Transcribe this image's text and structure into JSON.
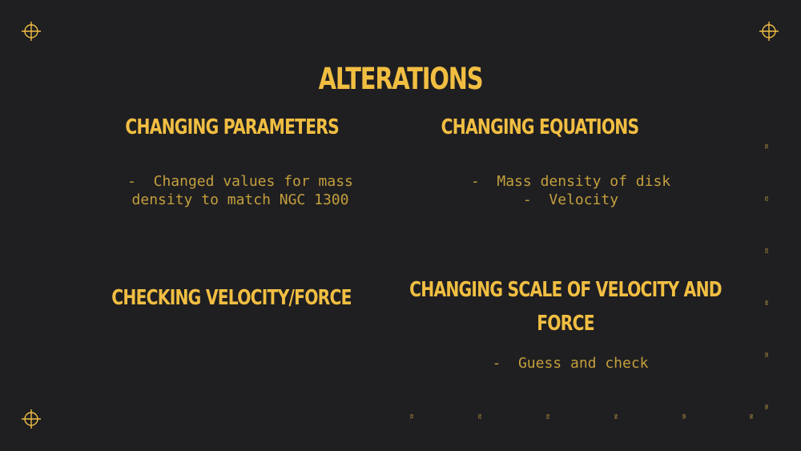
{
  "title": "ALTERATIONS",
  "colors": {
    "background": "#1f1f22",
    "accent": "#f1be42",
    "body_text": "#c49f3c"
  },
  "sections": [
    {
      "heading": "CHANGING PARAMETERS",
      "bullets": [
        "-  Changed values for mass",
        "density to match NGC 1300"
      ]
    },
    {
      "heading": "CHANGING EQUATIONS",
      "bullets": [
        "-  Mass density of disk",
        "-  Velocity"
      ]
    },
    {
      "heading": "CHECKING VELOCITY/FORCE",
      "bullets": []
    },
    {
      "heading_lines": [
        "CHANGING SCALE OF VELOCITY AND",
        "FORCE"
      ],
      "bullets": [
        "-  Guess and check"
      ]
    }
  ],
  "ruler_right": [
    "01",
    "02",
    "03",
    "04",
    "05",
    "06"
  ],
  "ruler_bottom": [
    "01",
    "02",
    "03",
    "04",
    "05",
    "06"
  ],
  "corner_icons": [
    "crosshair-icon",
    "crosshair-icon",
    "crosshair-icon",
    "crosshair-icon"
  ]
}
